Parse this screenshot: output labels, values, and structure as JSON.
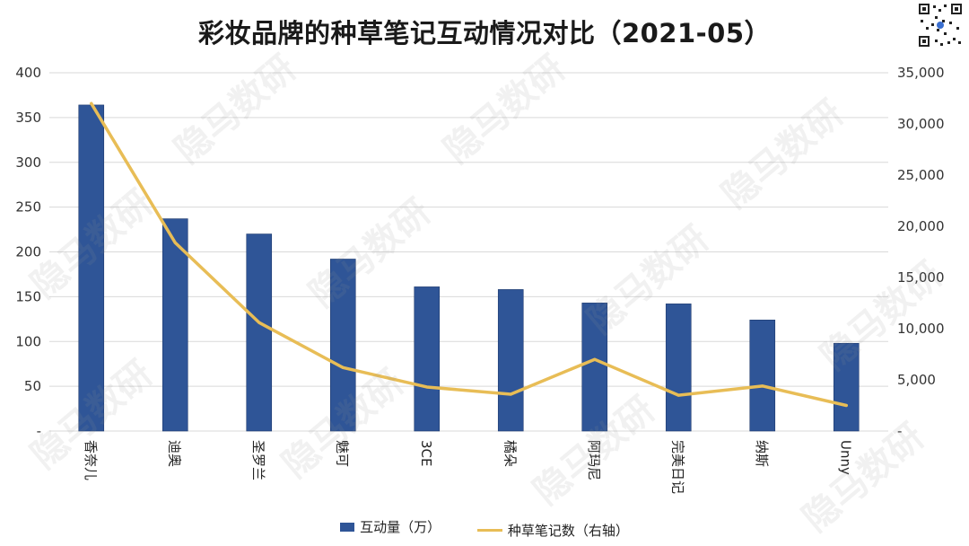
{
  "title": "彩妆品牌的种草笔记互动情况对比（2021-05）",
  "watermark": "隐马数研",
  "colors": {
    "bar": "#2f5597",
    "line": "#e8bd56",
    "grid": "#d9d9d9"
  },
  "chart_data": {
    "type": "bar",
    "title": "彩妆品牌的种草笔记互动情况对比（2021-05）",
    "categories": [
      "香奈儿",
      "迪奥",
      "圣罗兰",
      "魅可",
      "3CE",
      "橘朵",
      "阿玛尼",
      "完美日记",
      "纳斯",
      "Unny"
    ],
    "series": [
      {
        "name": "互动量（万）",
        "type": "bar",
        "axis": "left",
        "values": [
          364,
          237,
          220,
          192,
          161,
          158,
          143,
          142,
          124,
          98
        ]
      },
      {
        "name": "种草笔记数（右轴）",
        "type": "line",
        "axis": "right",
        "values": [
          32000,
          18400,
          10600,
          6200,
          4300,
          3600,
          7000,
          3500,
          4400,
          2500
        ]
      }
    ],
    "y_left": {
      "min": 0,
      "max": 400,
      "ticks": [
        "-",
        "50",
        "100",
        "150",
        "200",
        "250",
        "300",
        "350",
        "400"
      ]
    },
    "y_right": {
      "min": 0,
      "max": 35000,
      "ticks": [
        "-",
        "5,000",
        "10,000",
        "15,000",
        "20,000",
        "25,000",
        "30,000",
        "35,000"
      ]
    },
    "grid": true,
    "legend_position": "bottom"
  }
}
